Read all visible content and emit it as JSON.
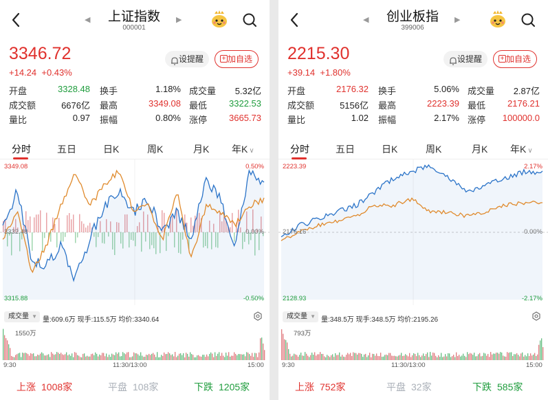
{
  "colors": {
    "red": "#e0312d",
    "green": "#1e9c3c",
    "blue": "#2a73c8",
    "orange": "#e08a2c"
  },
  "panels": [
    {
      "title": "上证指数",
      "code": "000001",
      "price": "3346.72",
      "change_abs": "+14.24",
      "change_pct": "+0.43%",
      "alarm_label": "设提醒",
      "fav_label": "加自选",
      "stats": [
        [
          {
            "l": "开盘",
            "v": "3328.48",
            "c": "g"
          },
          {
            "l": "换手",
            "v": "1.18%",
            "c": "k"
          },
          {
            "l": "成交量",
            "v": "5.32亿",
            "c": "k"
          }
        ],
        [
          {
            "l": "成交额",
            "v": "6676亿",
            "c": "k"
          },
          {
            "l": "最高",
            "v": "3349.08",
            "c": "r"
          },
          {
            "l": "最低",
            "v": "3322.53",
            "c": "g"
          }
        ],
        [
          {
            "l": "量比",
            "v": "0.97",
            "c": "k"
          },
          {
            "l": "振幅",
            "v": "0.80%",
            "c": "k"
          },
          {
            "l": "涨停",
            "v": "3665.73",
            "c": "r"
          }
        ]
      ],
      "tabs": [
        "分时",
        "五日",
        "日K",
        "周K",
        "月K",
        "年K"
      ],
      "axis": {
        "top": "3349.08",
        "mid": "3332.48",
        "bottom": "3315.88",
        "top_pct": "0.50%",
        "mid_pct": "0.00%",
        "bottom_pct": "-0.50%"
      },
      "vol": {
        "label": "成交量",
        "info": "量:609.6万  现手:115.5万  均价:3340.64",
        "max": "1550万"
      },
      "times": [
        "9:30",
        "11:30/13:00",
        "15:00"
      ],
      "footer": {
        "up_label": "上涨",
        "up": "1008家",
        "flat_label": "平盘",
        "flat": "108家",
        "down_label": "下跌",
        "down": "1205家"
      }
    },
    {
      "title": "创业板指",
      "code": "399006",
      "price": "2215.30",
      "change_abs": "+39.14",
      "change_pct": "+1.80%",
      "alarm_label": "设提醒",
      "fav_label": "加自选",
      "stats": [
        [
          {
            "l": "开盘",
            "v": "2176.32",
            "c": "r"
          },
          {
            "l": "换手",
            "v": "5.06%",
            "c": "k"
          },
          {
            "l": "成交量",
            "v": "2.87亿",
            "c": "k"
          }
        ],
        [
          {
            "l": "成交额",
            "v": "5156亿",
            "c": "k"
          },
          {
            "l": "最高",
            "v": "2223.39",
            "c": "r"
          },
          {
            "l": "最低",
            "v": "2176.21",
            "c": "r"
          }
        ],
        [
          {
            "l": "量比",
            "v": "1.02",
            "c": "k"
          },
          {
            "l": "振幅",
            "v": "2.17%",
            "c": "k"
          },
          {
            "l": "涨停",
            "v": "100000.0",
            "c": "r"
          }
        ]
      ],
      "tabs": [
        "分时",
        "五日",
        "日K",
        "周K",
        "月K",
        "年K"
      ],
      "axis": {
        "top": "2223.39",
        "mid": "2176.16",
        "bottom": "2128.93",
        "top_pct": "2.17%",
        "mid_pct": "0.00%",
        "bottom_pct": "-2.17%"
      },
      "vol": {
        "label": "成交量",
        "info": "量:348.5万  现手:348.5万  均价:2195.26",
        "max": "793万"
      },
      "times": [
        "9:30",
        "11:30/13:00",
        "15:00"
      ],
      "footer": {
        "up_label": "上涨",
        "up": "752家",
        "flat_label": "平盘",
        "flat": "32家",
        "down_label": "下跌",
        "down": "585家"
      }
    }
  ]
}
